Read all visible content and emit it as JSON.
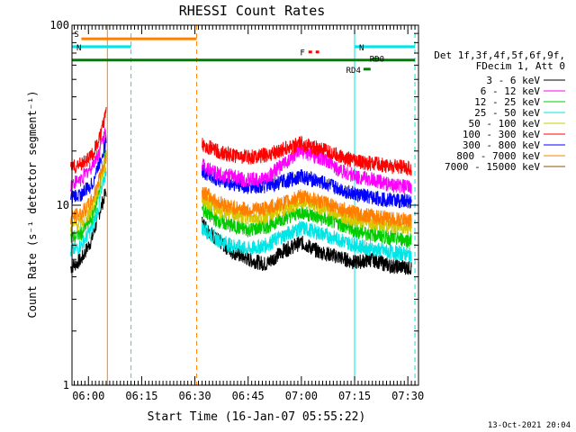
{
  "chart_data": {
    "type": "line",
    "title": "RHESSI Count Rates",
    "xlabel": "Start Time (16-Jan-07 05:55:22)",
    "ylabel": "Count Rate (s⁻¹ detector segment⁻¹)",
    "yscale": "log",
    "ylim": [
      1,
      100
    ],
    "xlim": [
      "05:55:22",
      "07:33:00"
    ],
    "x_ticks": [
      "06:00",
      "06:15",
      "06:30",
      "06:45",
      "07:00",
      "07:15",
      "07:30"
    ],
    "y_ticks": [
      "1",
      "10",
      "100"
    ],
    "grid": false,
    "legend_position": "right",
    "legend_header": [
      "Det 1f,3f,4f,5f,6f,9f,",
      "FDecim 1, Att 0"
    ],
    "series": [
      {
        "name": "3 - 6 keV",
        "color": "#000000",
        "x": [
          "05:55",
          "05:58",
          "06:01",
          "06:03",
          "06:05",
          "06:32",
          "06:36",
          "06:40",
          "06:45",
          "06:50",
          "06:55",
          "07:00",
          "07:05",
          "07:10",
          "07:15",
          "07:20",
          "07:25",
          "07:31"
        ],
        "values": [
          4.5,
          5.0,
          6.5,
          9.0,
          12.0,
          8.0,
          6.5,
          5.6,
          5.0,
          4.7,
          5.6,
          6.2,
          5.5,
          5.2,
          4.8,
          5.0,
          4.6,
          4.5
        ]
      },
      {
        "name": "6 - 12 keV",
        "color": "#ff00ff",
        "x": [
          "05:55",
          "05:58",
          "06:01",
          "06:03",
          "06:05",
          "06:32",
          "06:36",
          "06:40",
          "06:45",
          "06:50",
          "06:55",
          "07:00",
          "07:05",
          "07:10",
          "07:15",
          "07:20",
          "07:25",
          "07:31"
        ],
        "values": [
          13.0,
          14.0,
          16.5,
          20.0,
          26.0,
          17.0,
          15.0,
          14.5,
          13.8,
          14.0,
          17.0,
          20.0,
          18.5,
          16.0,
          14.5,
          13.8,
          13.0,
          12.5
        ]
      },
      {
        "name": "12 - 25 keV",
        "color": "#00cc00",
        "x": [
          "05:55",
          "05:58",
          "06:01",
          "06:03",
          "06:05",
          "06:32",
          "06:36",
          "06:40",
          "06:45",
          "06:50",
          "06:55",
          "07:00",
          "07:05",
          "07:10",
          "07:15",
          "07:20",
          "07:25",
          "07:31"
        ],
        "values": [
          6.5,
          7.0,
          8.5,
          12.0,
          20.0,
          9.5,
          8.3,
          7.7,
          7.3,
          7.6,
          8.5,
          9.2,
          8.5,
          8.0,
          7.2,
          6.9,
          6.6,
          6.4
        ]
      },
      {
        "name": "25 - 50 keV",
        "color": "#00e5e5",
        "x": [
          "05:55",
          "05:58",
          "06:01",
          "06:03",
          "06:05",
          "06:32",
          "06:36",
          "06:40",
          "06:45",
          "06:50",
          "06:55",
          "07:00",
          "07:05",
          "07:10",
          "07:15",
          "07:20",
          "07:25",
          "07:31"
        ],
        "values": [
          5.5,
          6.0,
          7.5,
          10.0,
          16.0,
          7.5,
          6.5,
          6.0,
          5.7,
          6.0,
          6.8,
          7.5,
          7.0,
          6.5,
          6.0,
          5.7,
          5.5,
          5.3
        ]
      },
      {
        "name": "50 - 100 keV",
        "color": "#d4c800",
        "x": [
          "05:55",
          "05:58",
          "06:01",
          "06:03",
          "06:05",
          "06:32",
          "06:36",
          "06:40",
          "06:45",
          "06:50",
          "06:55",
          "07:00",
          "07:05",
          "07:10",
          "07:15",
          "07:20",
          "07:25",
          "07:31"
        ],
        "values": [
          7.5,
          8.0,
          9.5,
          13.0,
          18.0,
          11.0,
          9.5,
          9.0,
          8.5,
          8.7,
          9.5,
          10.5,
          9.8,
          9.0,
          8.3,
          8.0,
          7.7,
          7.5
        ]
      },
      {
        "name": "100 - 300 keV",
        "color": "#ff0000",
        "x": [
          "05:55",
          "05:58",
          "06:01",
          "06:03",
          "06:05",
          "06:32",
          "06:36",
          "06:40",
          "06:45",
          "06:50",
          "06:55",
          "07:00",
          "07:05",
          "07:10",
          "07:15",
          "07:20",
          "07:25",
          "07:31"
        ],
        "values": [
          16.0,
          17.0,
          19.0,
          23.0,
          32.0,
          22.0,
          20.0,
          19.0,
          18.5,
          19.0,
          20.5,
          22.0,
          20.5,
          19.0,
          17.5,
          17.0,
          16.5,
          16.0
        ]
      },
      {
        "name": "300 - 800 keV",
        "color": "#0000ff",
        "x": [
          "05:55",
          "05:58",
          "06:01",
          "06:03",
          "06:05",
          "06:32",
          "06:36",
          "06:40",
          "06:45",
          "06:50",
          "06:55",
          "07:00",
          "07:05",
          "07:10",
          "07:15",
          "07:20",
          "07:25",
          "07:31"
        ],
        "values": [
          11.0,
          11.5,
          13.0,
          17.0,
          23.0,
          15.5,
          14.0,
          13.2,
          12.6,
          12.8,
          13.5,
          14.5,
          13.5,
          12.5,
          11.5,
          11.0,
          10.7,
          10.5
        ]
      },
      {
        "name": "800 - 7000 keV",
        "color": "#ff8000",
        "x": [
          "05:55",
          "05:58",
          "06:01",
          "06:03",
          "06:05",
          "06:32",
          "06:36",
          "06:40",
          "06:45",
          "06:50",
          "06:55",
          "07:00",
          "07:05",
          "07:10",
          "07:15",
          "07:20",
          "07:25",
          "07:31"
        ],
        "values": [
          8.5,
          9.0,
          10.5,
          14.0,
          19.0,
          12.0,
          10.5,
          9.8,
          9.4,
          9.6,
          10.3,
          11.2,
          10.5,
          9.8,
          9.0,
          8.7,
          8.4,
          8.2
        ]
      },
      {
        "name": "7000 - 15000 keV",
        "color": "#8b5a00",
        "x": [],
        "values": []
      }
    ],
    "flag_bars": [
      {
        "label": "S",
        "color": "#ff8000",
        "start": "05:58:00",
        "end": "06:30:30",
        "level": 84
      },
      {
        "label": "N",
        "color": "#00e5e5",
        "start": "05:55:22",
        "end": "06:12:00",
        "level": 76
      },
      {
        "label": "N",
        "color": "#00e5e5",
        "start": "07:15:00",
        "end": "07:32:00",
        "level": 76
      },
      {
        "label": "",
        "color": "#008000",
        "start": "05:55:22",
        "end": "07:32:00",
        "level": 64
      },
      {
        "label": "F",
        "color": "#ff0000",
        "start": "07:02:00",
        "end": "07:05:00",
        "level": 71
      },
      {
        "label": "RD0",
        "color": "#008000",
        "start": "07:20:00",
        "end": "07:22:00",
        "level": 65
      },
      {
        "label": "RD4",
        "color": "#008000",
        "start": "07:17:30",
        "end": "07:19:30",
        "level": 57
      }
    ],
    "vlines": [
      {
        "x": "05:55:22",
        "color": "#00e5e5",
        "style": "solid"
      },
      {
        "x": "06:05:20",
        "color": "#ff8000",
        "style": "solid"
      },
      {
        "x": "06:12:00",
        "color": "#00e5e5",
        "style": "dashed"
      },
      {
        "x": "06:30:30",
        "color": "#ff8000",
        "style": "dashed"
      },
      {
        "x": "07:15:00",
        "color": "#00e5e5",
        "style": "solid"
      },
      {
        "x": "07:32:00",
        "color": "#00e5e5",
        "style": "dashed"
      }
    ],
    "gaps": [
      [
        "06:05:20",
        "06:31:30"
      ]
    ]
  },
  "footer": {
    "timestamp": "13-Oct-2021 20:04"
  }
}
